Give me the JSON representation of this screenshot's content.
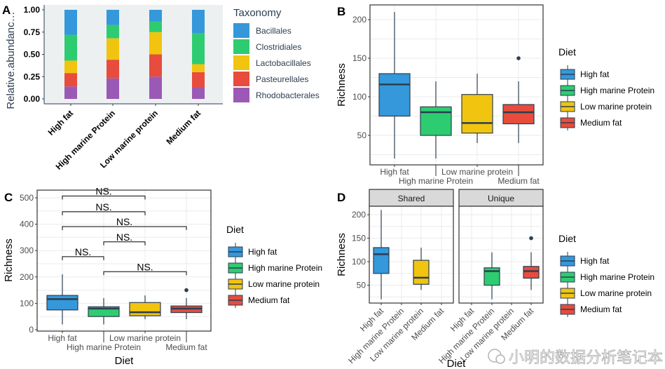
{
  "colors": {
    "Bacillales": "#3498db",
    "Clostridiales": "#2ecc71",
    "Lactobacillales": "#f1c40f",
    "Pasteurellales": "#e74c3c",
    "Rhodobacterales": "#9b59b6",
    "High fat": "#3498db",
    "High marine Protein": "#2ecc71",
    "Low marine protein": "#f1c40f",
    "Medium fat": "#e74c3c",
    "line": "#2c3e50"
  },
  "watermark": "小明的数据分析笔记本",
  "chart_data": [
    {
      "panel": "A",
      "type": "bar",
      "stacked": true,
      "ylabel": "Relative.abundanc…",
      "xlabel": "",
      "ylim": [
        0,
        1
      ],
      "yticks": [
        "0.00",
        "0.25",
        "0.50",
        "0.75",
        "1.00"
      ],
      "categories": [
        "High fat",
        "High marine Protein",
        "Low marine protein",
        "Medium fat"
      ],
      "legend_title": "Taxonomy",
      "legend_position": "right",
      "series": [
        {
          "name": "Bacillales",
          "values": [
            0.28,
            0.17,
            0.13,
            0.26
          ]
        },
        {
          "name": "Clostridiales",
          "values": [
            0.29,
            0.15,
            0.12,
            0.35
          ]
        },
        {
          "name": "Lactobacillales",
          "values": [
            0.14,
            0.24,
            0.25,
            0.09
          ]
        },
        {
          "name": "Pasteurellales",
          "values": [
            0.15,
            0.21,
            0.25,
            0.17
          ]
        },
        {
          "name": "Rhodobacterales",
          "values": [
            0.14,
            0.23,
            0.25,
            0.13
          ]
        }
      ]
    },
    {
      "panel": "B",
      "type": "box",
      "ylabel": "Richness",
      "xlabel": "",
      "ylim": [
        12,
        218
      ],
      "yticks": [
        50,
        100,
        150,
        200
      ],
      "legend_title": "Diet",
      "legend_position": "right",
      "groups": [
        {
          "name": "High fat",
          "min": 20,
          "q1": 75,
          "median": 116,
          "q3": 130,
          "max": 210,
          "outliers": []
        },
        {
          "name": "High marine Protein",
          "min": 20,
          "q1": 50,
          "median": 80,
          "q3": 87,
          "max": 120,
          "outliers": []
        },
        {
          "name": "Low marine protein",
          "min": 40,
          "q1": 53,
          "median": 66,
          "q3": 103,
          "max": 130,
          "outliers": []
        },
        {
          "name": "Medium fat",
          "min": 40,
          "q1": 65,
          "median": 80,
          "q3": 90,
          "max": 120,
          "outliers": [
            150
          ]
        }
      ]
    },
    {
      "panel": "C",
      "type": "box",
      "ylabel": "Richness",
      "xlabel": "Diet",
      "ylim": [
        -5,
        530
      ],
      "yticks": [
        0,
        100,
        200,
        300,
        400,
        500
      ],
      "legend_title": "Diet",
      "legend_position": "right",
      "groups": [
        {
          "name": "High fat",
          "min": 20,
          "q1": 75,
          "median": 116,
          "q3": 130,
          "max": 210,
          "outliers": []
        },
        {
          "name": "High marine Protein",
          "min": 20,
          "q1": 50,
          "median": 80,
          "q3": 87,
          "max": 120,
          "outliers": []
        },
        {
          "name": "Low marine protein",
          "min": 40,
          "q1": 53,
          "median": 66,
          "q3": 103,
          "max": 130,
          "outliers": []
        },
        {
          "name": "Medium fat",
          "min": 40,
          "q1": 65,
          "median": 80,
          "q3": 90,
          "max": 120,
          "outliers": [
            150
          ]
        }
      ],
      "comparisons": [
        {
          "from": 1,
          "to": 3,
          "y": 507,
          "label": "NS."
        },
        {
          "from": 1,
          "to": 3,
          "y": 447,
          "label": "NS."
        },
        {
          "from": 1,
          "to": 4,
          "y": 391,
          "label": "NS."
        },
        {
          "from": 2,
          "to": 3,
          "y": 333,
          "label": "NS."
        },
        {
          "from": 1,
          "to": 2,
          "y": 277,
          "label": "NS."
        },
        {
          "from": 2,
          "to": 4,
          "y": 220,
          "label": "NS."
        }
      ]
    },
    {
      "panel": "D",
      "type": "box",
      "ylabel": "Richness",
      "xlabel": "Diet",
      "ylim": [
        12,
        218
      ],
      "yticks": [
        50,
        100,
        150,
        200
      ],
      "legend_title": "Diet",
      "legend_position": "right",
      "categories": [
        "High fat",
        "High marine Protein",
        "Low marine protein",
        "Medium fat"
      ],
      "facets": [
        {
          "name": "Shared",
          "groups": [
            {
              "name": "High fat",
              "slot": 1,
              "min": 20,
              "q1": 75,
              "median": 116,
              "q3": 130,
              "max": 210,
              "outliers": []
            },
            {
              "name": "Low marine protein",
              "slot": 3,
              "min": 40,
              "q1": 52,
              "median": 66,
              "q3": 103,
              "max": 130,
              "outliers": []
            }
          ]
        },
        {
          "name": "Unique",
          "groups": [
            {
              "name": "High marine Protein",
              "slot": 2,
              "min": 20,
              "q1": 50,
              "median": 80,
              "q3": 87,
              "max": 120,
              "outliers": []
            },
            {
              "name": "Medium fat",
              "slot": 4,
              "min": 40,
              "q1": 65,
              "median": 80,
              "q3": 90,
              "max": 120,
              "outliers": [
                150
              ]
            }
          ]
        }
      ]
    }
  ]
}
